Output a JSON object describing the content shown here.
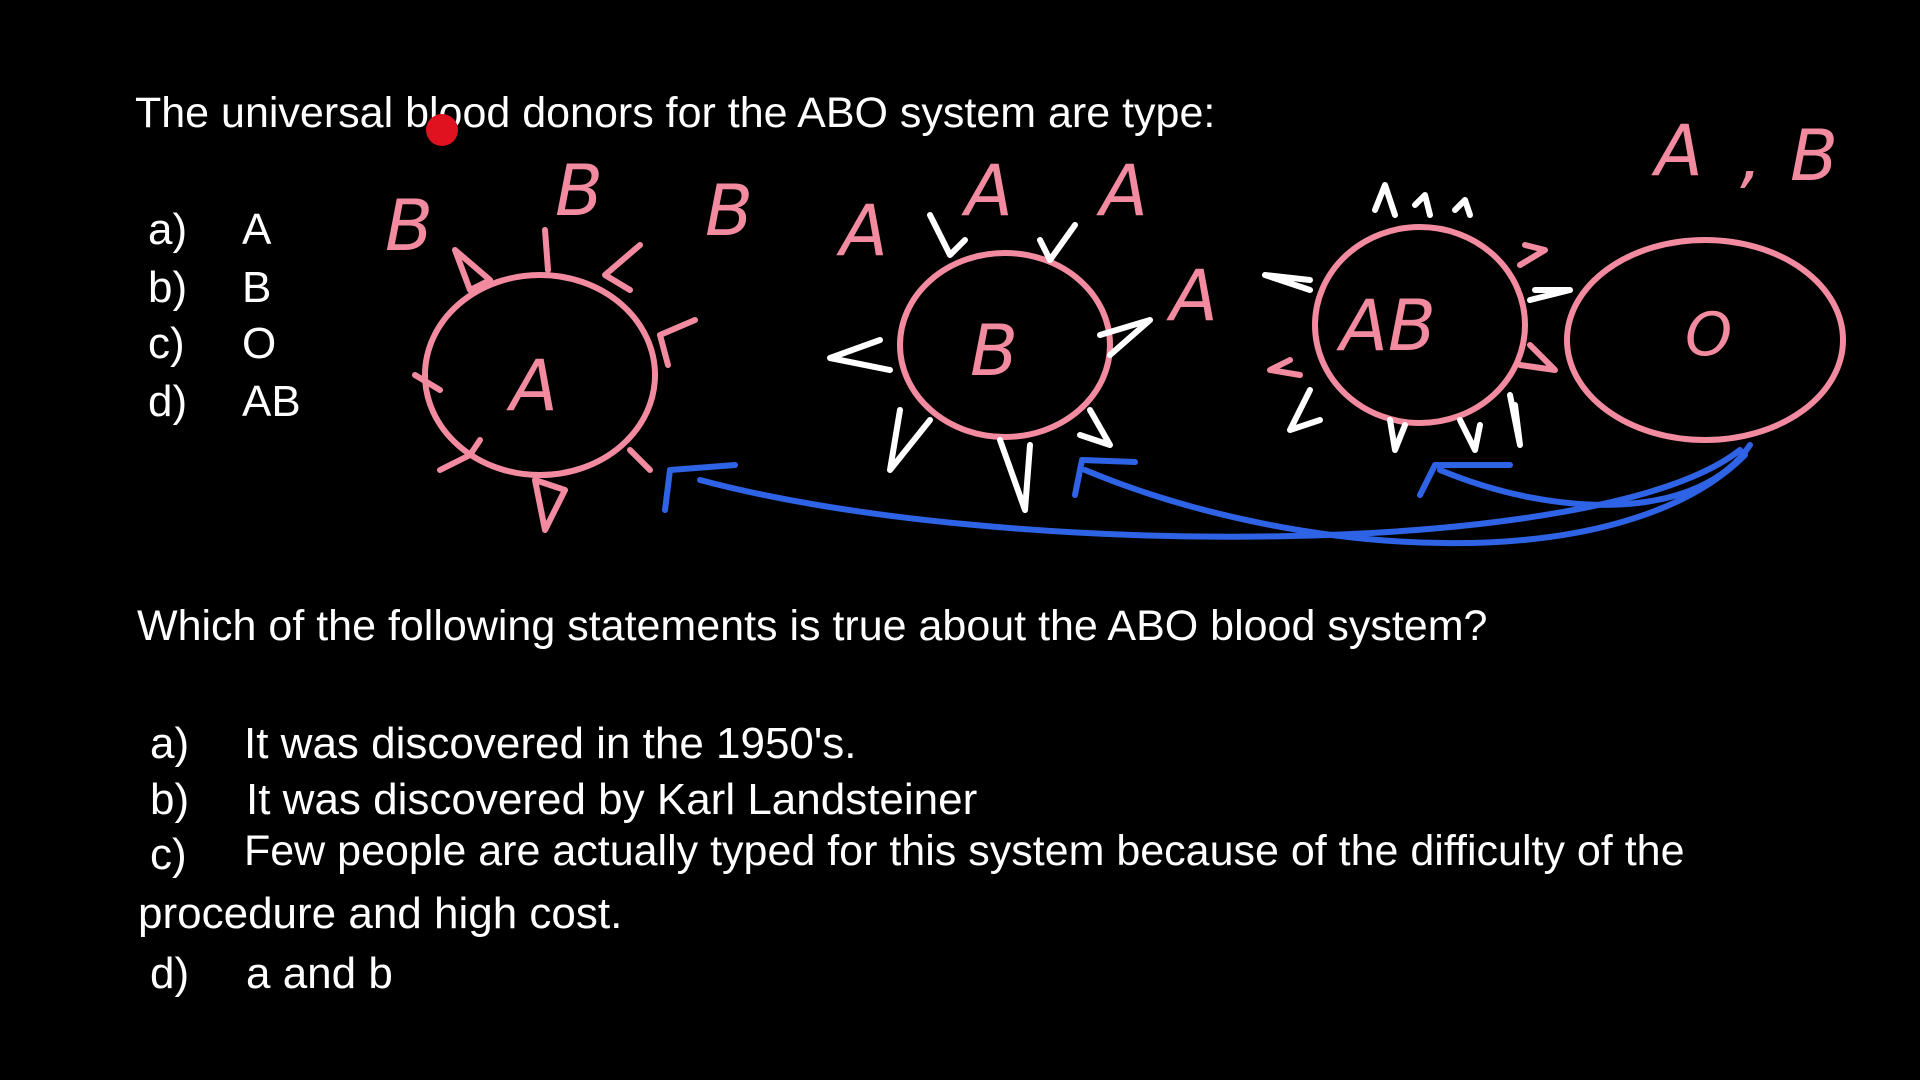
{
  "question1": {
    "text": "The universal blood donors for the ABO system are type:",
    "options": [
      {
        "letter": "a)",
        "text": "A"
      },
      {
        "letter": "b)",
        "text": "B"
      },
      {
        "letter": "c)",
        "text": "O"
      },
      {
        "letter": "d)",
        "text": "AB"
      }
    ]
  },
  "question2": {
    "text": "Which of the following statements is true about the ABO blood system?",
    "options": [
      {
        "letter": "a)",
        "text": "It was discovered in the 1950's."
      },
      {
        "letter": "b)",
        "text": "It was discovered by Karl Landsteiner"
      },
      {
        "letter": "c)",
        "text": "Few people are actually typed for this system because of the difficulty of the",
        "continuation": "procedure and high cost."
      },
      {
        "letter": "d)",
        "text": "a and b"
      }
    ]
  },
  "annotations": {
    "cells": [
      {
        "label": "A",
        "antibodies": [
          "B",
          "B",
          "B"
        ]
      },
      {
        "label": "B",
        "antibodies": [
          "A",
          "A",
          "A"
        ]
      },
      {
        "label": "AB",
        "antibodies": [
          "A"
        ]
      },
      {
        "label": "O",
        "antibodies": [
          "A",
          ",",
          "B"
        ]
      }
    ],
    "colors": {
      "pink": "#f28ba0",
      "white": "#ffffff",
      "blue": "#2f63e6",
      "cursor": "#e0121f"
    }
  }
}
